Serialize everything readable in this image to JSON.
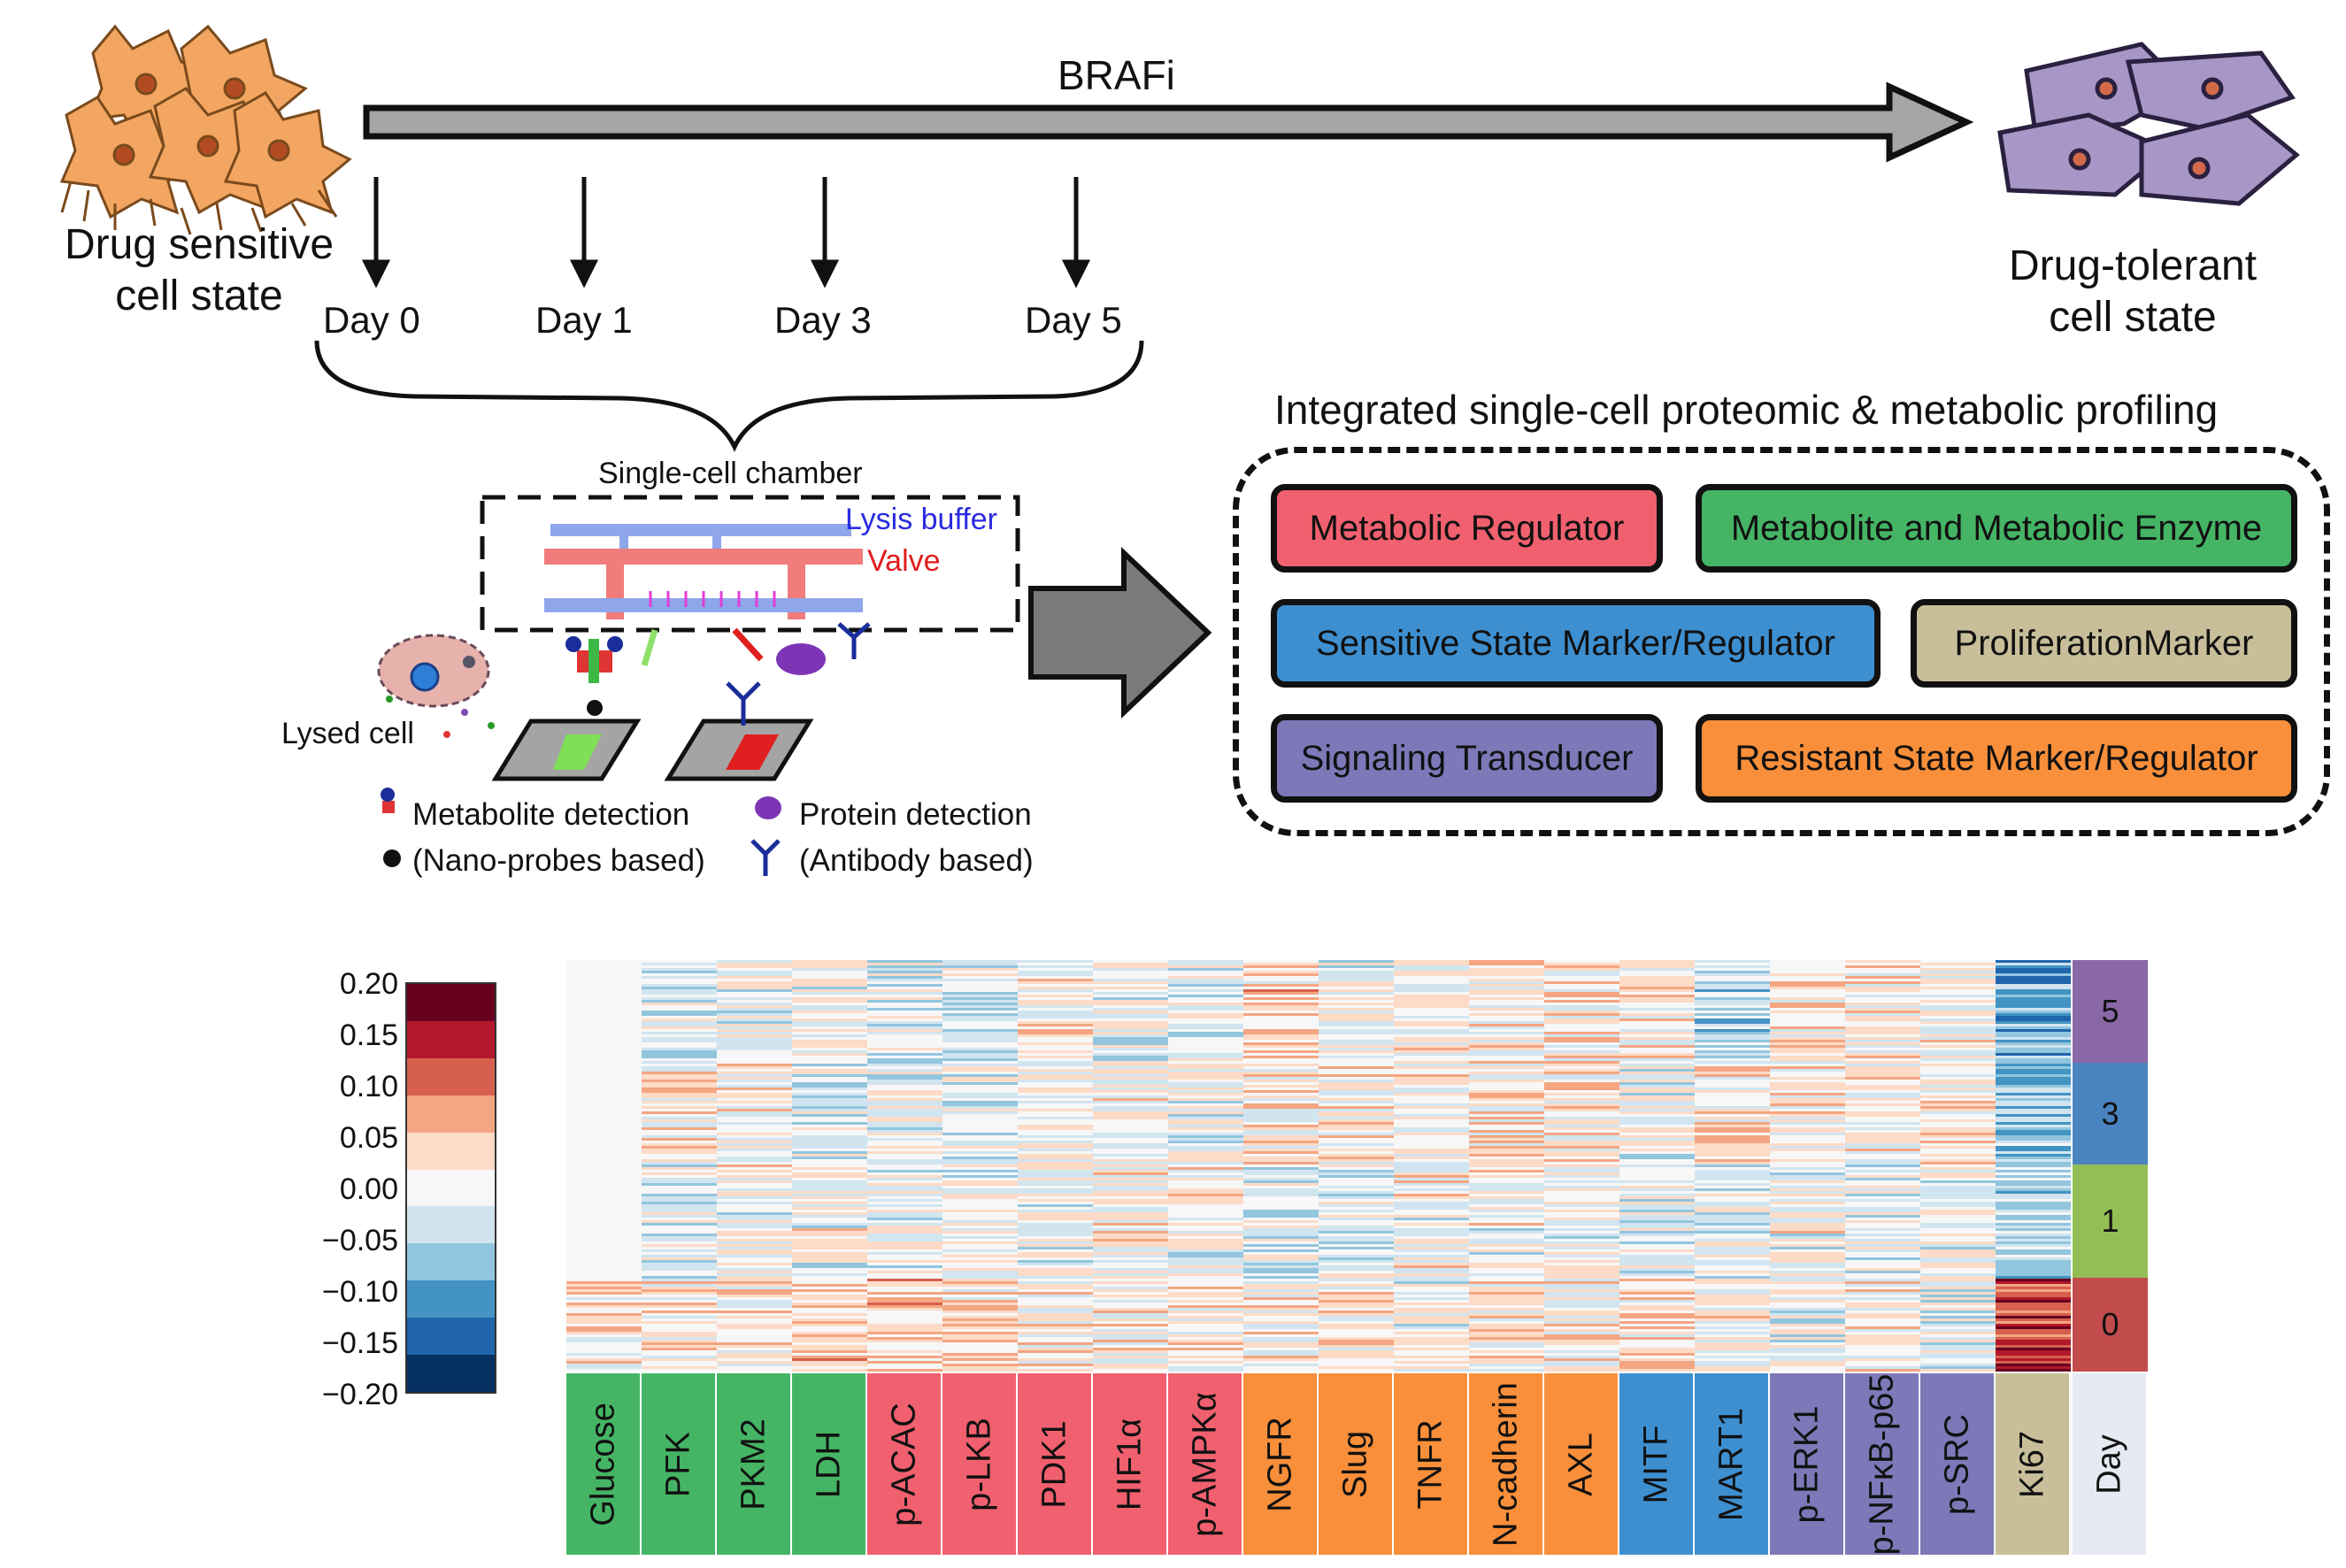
{
  "timeline": {
    "drug_label": "BRAFi",
    "start_state": [
      "Drug sensitive",
      "cell state"
    ],
    "end_state": [
      "Drug-tolerant",
      "cell state"
    ],
    "days": [
      "Day 0",
      "Day 1",
      "Day 3",
      "Day 5"
    ]
  },
  "chamber": {
    "title": "Single-cell chamber",
    "lysis_label": "Lysis buffer",
    "valve_label": "Valve",
    "lysed_cell_label": "Lysed cell",
    "metabolite_legend": [
      "Metabolite detection",
      "(Nano-probes based)"
    ],
    "protein_legend": [
      "Protein detection",
      "(Antibody based)"
    ]
  },
  "profiling": {
    "title": "Integrated single-cell proteomic & metabolic profiling",
    "categories": [
      {
        "label": "Metabolic Regulator",
        "color": "#f0606e"
      },
      {
        "label": "Metabolite and Metabolic Enzyme",
        "color": "#45b565"
      },
      {
        "label": "Sensitive State Marker/Regulator",
        "color": "#3d8fd0"
      },
      {
        "label": "ProliferationMarker",
        "color": "#c8bf9a"
      },
      {
        "label": "Signaling Transducer",
        "color": "#7d78b8"
      },
      {
        "label": "Resistant State Marker/Regulator",
        "color": "#f98f3a"
      }
    ]
  },
  "colorbar": {
    "ticks": [
      "0.20",
      "0.15",
      "0.10",
      "0.05",
      "0.00",
      "−0.05",
      "−0.10",
      "−0.15",
      "−0.20"
    ],
    "colors": [
      "#67001f",
      "#b2182b",
      "#d6604d",
      "#f4a582",
      "#fddbc7",
      "#f7f7f7",
      "#d1e5f0",
      "#92c5de",
      "#4393c3",
      "#2166ac",
      "#053061"
    ]
  },
  "heatmap": {
    "columns": [
      {
        "label": "Glucose",
        "color": "#45b565"
      },
      {
        "label": "PFK",
        "color": "#45b565"
      },
      {
        "label": "PKM2",
        "color": "#45b565"
      },
      {
        "label": "LDH",
        "color": "#45b565"
      },
      {
        "label": "p-ACAC",
        "color": "#f0606e"
      },
      {
        "label": "p-LKB",
        "color": "#f0606e"
      },
      {
        "label": "PDK1",
        "color": "#f0606e"
      },
      {
        "label": "HIF1α",
        "color": "#f0606e"
      },
      {
        "label": "p-AMPKα",
        "color": "#f0606e"
      },
      {
        "label": "NGFR",
        "color": "#f98f3a"
      },
      {
        "label": "Slug",
        "color": "#f98f3a"
      },
      {
        "label": "TNFR",
        "color": "#f98f3a"
      },
      {
        "label": "N-cadherin",
        "color": "#f98f3a"
      },
      {
        "label": "AXL",
        "color": "#f98f3a"
      },
      {
        "label": "MITF",
        "color": "#3d8fd0"
      },
      {
        "label": "MART1",
        "color": "#3d8fd0"
      },
      {
        "label": "p-ERK1",
        "color": "#7d78b8"
      },
      {
        "label": "p-NFκB-p65",
        "color": "#7d78b8"
      },
      {
        "label": "p-SRC",
        "color": "#7d78b8"
      },
      {
        "label": "Ki67",
        "color": "#c8bf9a"
      },
      {
        "label": "Day",
        "color": "#e5e9f2"
      }
    ],
    "day_blocks": [
      {
        "label": "5",
        "color": "#8a67a6"
      },
      {
        "label": "3",
        "color": "#4a84c0"
      },
      {
        "label": "1",
        "color": "#93be56"
      },
      {
        "label": "0",
        "color": "#c24b4b"
      }
    ]
  }
}
